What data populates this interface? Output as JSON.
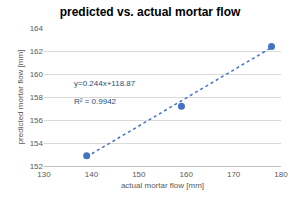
{
  "chart_data": {
    "type": "scatter",
    "title": "predicted vs. actual mortar flow",
    "x_label": "actual mortar flow [mm]",
    "y_label": "predicted mortar flow [mm]",
    "series": [
      {
        "type": "scatter",
        "color": "#4472c4",
        "marker": "circle",
        "x": [
          139,
          159,
          178
        ],
        "values": [
          152.9,
          157.2,
          162.4
        ]
      },
      {
        "type": "line",
        "color": "#4472c4",
        "line_style": "dotted",
        "x": [
          139,
          178
        ],
        "values": [
          152.8,
          162.3
        ]
      }
    ],
    "xlim": [
      130,
      180
    ],
    "xticks": [
      130,
      140,
      150,
      160,
      170,
      180
    ],
    "ylim": [
      152,
      164
    ],
    "yticks": [
      152,
      154,
      156,
      158,
      160,
      162,
      164
    ],
    "grid": true,
    "annotations": [
      "y=0.244x+118.87",
      "R² = 0.9942"
    ]
  }
}
